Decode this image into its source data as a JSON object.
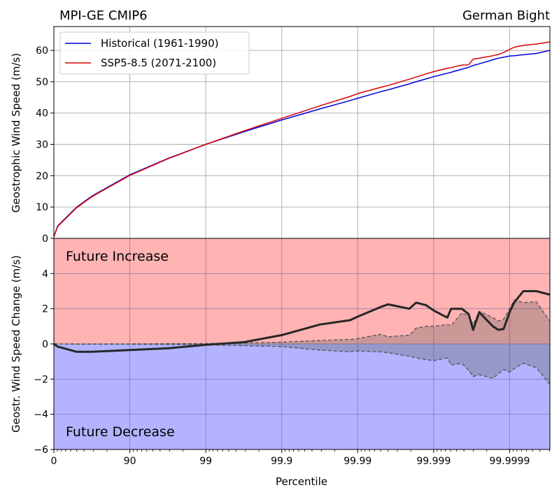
{
  "chart_data": [
    {
      "type": "line",
      "title_left": "MPI-GE CMIP6",
      "title_right": "German Bight",
      "ylabel": "Geostrophic Wind Speed (m/s)",
      "ylim": [
        0,
        67.6
      ],
      "yticks": [
        0,
        10,
        20,
        30,
        40,
        50,
        60
      ],
      "xscale": "percentile (-log10(1-p))",
      "grid": true,
      "legend_placement": "top-left",
      "x": [
        0,
        10.87,
        50,
        68.38,
        90,
        96.84,
        99,
        99.684,
        99.9,
        99.9684,
        99.98741,
        99.99,
        99.99499,
        99.99602,
        99.99791,
        99.9983,
        99.99874,
        99.999,
        99.999339,
        99.999411,
        99.999573,
        99.999653,
        99.999698,
        99.999749,
        99.999834,
        99.999859,
        99.99988,
        99.9999,
        99.9999129,
        99.9999339,
        99.9999553,
        99.9999705
      ],
      "series": [
        {
          "name": "Historical (1961-1990)",
          "color": "#0000dd",
          "values": [
            0.5,
            4,
            10,
            13.5,
            20.3,
            25.5,
            30,
            34,
            37.8,
            41.3,
            44,
            44.7,
            46.8,
            47.4,
            49.3,
            50,
            50.9,
            51.6,
            52.7,
            53,
            54,
            54.6,
            55.2,
            55.7,
            57,
            57.5,
            57.8,
            58.2,
            58.3,
            58.6,
            59,
            60
          ]
        },
        {
          "name": "SSP5-8.5 (2071-2100)",
          "color": "#dd0000",
          "values": [
            0.5,
            3.8,
            9.8,
            13.3,
            20.1,
            25.4,
            30,
            34.3,
            38.3,
            42.3,
            45.3,
            46.2,
            48.2,
            48.8,
            50.8,
            51.5,
            52.5,
            53.2,
            54.3,
            54.5,
            55.3,
            55.4,
            57.2,
            57.5,
            58.3,
            58.7,
            59.3,
            60.3,
            61,
            61.6,
            62,
            62.7
          ]
        }
      ]
    },
    {
      "type": "line",
      "xlabel": "Percentile",
      "ylabel": "Geostr. Wind Speed Change (m/s)",
      "ylim": [
        -6,
        6
      ],
      "yticks": [
        -6,
        -4,
        -2,
        0,
        2,
        4
      ],
      "xticks": [
        0,
        90,
        99,
        99.9,
        99.99,
        99.999,
        99.9999
      ],
      "xtick_labels": [
        "0",
        "90",
        "99",
        "99.9",
        "99.99",
        "99.999",
        "99.9999"
      ],
      "xlim_percentile": [
        0,
        99.9999705
      ],
      "grid": true,
      "annotations": [
        "Future Increase",
        "Future Decrease"
      ],
      "colors": {
        "increase_bg": "#ffb3b3",
        "decrease_bg": "#b3b3ff",
        "change_line": "#262626",
        "band": "#555555"
      },
      "x": [
        0,
        10.87,
        50,
        68.38,
        90,
        96.84,
        99,
        99.684,
        99.9,
        99.9684,
        99.98741,
        99.99,
        99.99499,
        99.99602,
        99.99791,
        99.9983,
        99.99874,
        99.999,
        99.999339,
        99.999411,
        99.999573,
        99.999653,
        99.999698,
        99.999749,
        99.999834,
        99.999859,
        99.99988,
        99.9999,
        99.9999129,
        99.9999339,
        99.9999553,
        99.9999705
      ],
      "change": [
        0,
        -0.15,
        -0.45,
        -0.45,
        -0.35,
        -0.25,
        -0.05,
        0.1,
        0.5,
        1.1,
        1.35,
        1.55,
        2.1,
        2.25,
        2.0,
        2.35,
        2.2,
        1.9,
        1.5,
        2.0,
        2.0,
        1.7,
        0.8,
        1.8,
        1.0,
        0.8,
        0.85,
        1.8,
        2.35,
        3.0,
        3.0,
        2.8
      ],
      "band_upper": [
        0,
        0,
        0,
        0,
        0,
        0.01,
        0.02,
        0.05,
        0.1,
        0.2,
        0.25,
        0.3,
        0.55,
        0.4,
        0.5,
        0.9,
        1.0,
        1.0,
        1.1,
        1.05,
        1.75,
        1.6,
        1.1,
        1.85,
        1.5,
        1.3,
        1.4,
        2.0,
        2.5,
        2.35,
        2.4,
        1.3
      ],
      "band_lower": [
        0,
        0,
        -0.02,
        -0.02,
        -0.02,
        -0.03,
        -0.05,
        -0.1,
        -0.15,
        -0.35,
        -0.45,
        -0.4,
        -0.45,
        -0.5,
        -0.7,
        -0.8,
        -0.9,
        -0.95,
        -0.8,
        -1.2,
        -1.1,
        -1.5,
        -1.85,
        -1.75,
        -1.95,
        -1.7,
        -1.45,
        -1.6,
        -1.4,
        -1.1,
        -1.35,
        -2.3
      ]
    }
  ]
}
